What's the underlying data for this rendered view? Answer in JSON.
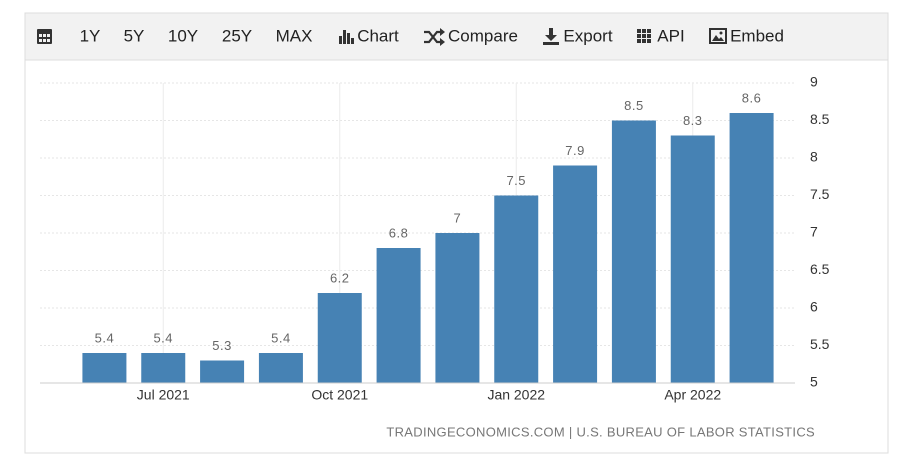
{
  "toolbar": [
    "1Y",
    "5Y",
    "10Y",
    "25Y",
    "MAX",
    "Chart",
    "Compare",
    "Export",
    "API",
    "Embed"
  ],
  "chart_data": {
    "type": "bar",
    "categories": [
      null,
      "Jul 2021",
      null,
      null,
      "Oct 2021",
      null,
      null,
      "Jan 2022",
      null,
      null,
      "Apr 2022",
      null
    ],
    "values": [
      5.4,
      5.4,
      5.3,
      5.4,
      6.2,
      6.8,
      7,
      7.5,
      7.9,
      8.5,
      8.3,
      8.6
    ],
    "color": "#4682b4",
    "ylim": [
      5,
      9
    ],
    "yticks": [
      5,
      5.5,
      6,
      6.5,
      7,
      7.5,
      8,
      8.5,
      9
    ],
    "grid": true,
    "source": "TRADINGECONOMICS.COM | U.S. BUREAU OF LABOR STATISTICS"
  }
}
